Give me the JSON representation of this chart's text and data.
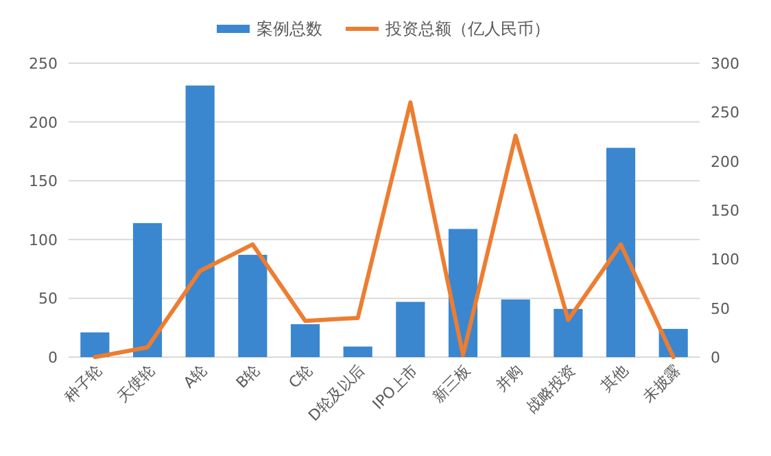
{
  "chart_data": {
    "type": "bar",
    "categories": [
      "种子轮",
      "天使轮",
      "A轮",
      "B轮",
      "C轮",
      "D轮及以后",
      "IPO上市",
      "新三板",
      "并购",
      "战略投资",
      "其他",
      "未披露"
    ],
    "series": [
      {
        "name": "案例总数",
        "color": "#3a87d0",
        "values": [
          21,
          114,
          231,
          87,
          28,
          9,
          47,
          109,
          49,
          41,
          178,
          24
        ]
      },
      {
        "name": "投资总额（亿人民币）",
        "type": "line",
        "axis": "y2",
        "color": "#ed7d31",
        "values": [
          0,
          10,
          88,
          115,
          37,
          40,
          260,
          2,
          226,
          38,
          115,
          0
        ]
      }
    ],
    "ylim": [
      0,
      250
    ],
    "yticks": [
      0,
      50,
      100,
      150,
      200,
      250
    ],
    "y2lim": [
      0,
      300
    ],
    "y2ticks": [
      0,
      50,
      100,
      150,
      200,
      250,
      300
    ],
    "grid": "y",
    "legend": "top",
    "marker": "none",
    "line_style": "solid"
  }
}
